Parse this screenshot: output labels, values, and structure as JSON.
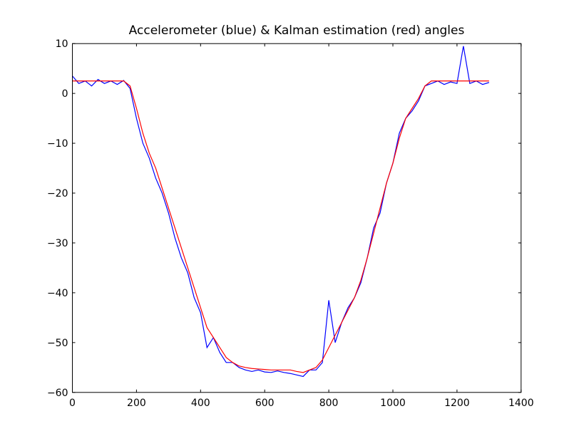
{
  "chart_data": {
    "type": "line",
    "title": "Accelerometer (blue) & Kalman estimation (red) angles",
    "x": [
      0,
      20,
      40,
      60,
      80,
      100,
      120,
      140,
      160,
      180,
      200,
      220,
      240,
      260,
      280,
      300,
      320,
      340,
      360,
      380,
      400,
      420,
      440,
      460,
      480,
      500,
      520,
      540,
      560,
      580,
      600,
      620,
      640,
      660,
      680,
      700,
      720,
      740,
      760,
      780,
      800,
      820,
      840,
      860,
      880,
      900,
      920,
      940,
      960,
      980,
      1000,
      1020,
      1040,
      1060,
      1080,
      1100,
      1120,
      1140,
      1160,
      1180,
      1200,
      1220,
      1240,
      1260,
      1280,
      1300
    ],
    "series": [
      {
        "color": "#0000ff",
        "values": [
          3.5,
          2,
          2.5,
          1.5,
          2.8,
          2,
          2.5,
          1.8,
          2.6,
          1,
          -5,
          -10,
          -13,
          -17,
          -20,
          -24,
          -29,
          -33,
          -36,
          -41,
          -44,
          -51,
          -49,
          -52,
          -54,
          -54,
          -55,
          -55.5,
          -55.8,
          -55.5,
          -55.9,
          -56,
          -55.7,
          -56,
          -56.2,
          -56.5,
          -56.8,
          -55.5,
          -55.5,
          -54,
          -41.5,
          -50,
          -46,
          -43,
          -41,
          -38,
          -33,
          -27,
          -24,
          -18,
          -14,
          -8,
          -5,
          -3.5,
          -1.5,
          1.5,
          2,
          2.5,
          1.8,
          2.3,
          2,
          9.5,
          2,
          2.5,
          1.8,
          2.2
        ]
      },
      {
        "color": "#ff0000",
        "values": [
          2.5,
          2.5,
          2.5,
          2.5,
          2.5,
          2.5,
          2.5,
          2.5,
          2.5,
          1.5,
          -3,
          -8,
          -12,
          -15,
          -19,
          -23,
          -27,
          -31,
          -35,
          -39,
          -43,
          -47,
          -49,
          -51,
          -53,
          -54,
          -54.7,
          -55,
          -55.2,
          -55.3,
          -55.4,
          -55.5,
          -55.5,
          -55.5,
          -55.5,
          -55.8,
          -56,
          -55.5,
          -55,
          -53.5,
          -51,
          -48.5,
          -46,
          -43.5,
          -41,
          -37.5,
          -33,
          -28,
          -23,
          -18,
          -14,
          -9,
          -5,
          -3,
          -1,
          1.5,
          2.5,
          2.5,
          2.5,
          2.5,
          2.5,
          2.5,
          2.5,
          2.5,
          2.5,
          2.5
        ]
      }
    ],
    "xlim": [
      0,
      1400
    ],
    "xticks": [
      0,
      200,
      400,
      600,
      800,
      1000,
      1200,
      1400
    ],
    "ylim": [
      -60,
      10
    ],
    "yticks": [
      {
        "value": -60,
        "label": "−60"
      },
      {
        "value": -50,
        "label": "−50"
      },
      {
        "value": -40,
        "label": "−40"
      },
      {
        "value": -30,
        "label": "−30"
      },
      {
        "value": -20,
        "label": "−20"
      },
      {
        "value": -10,
        "label": "−10"
      },
      0,
      10
    ]
  }
}
